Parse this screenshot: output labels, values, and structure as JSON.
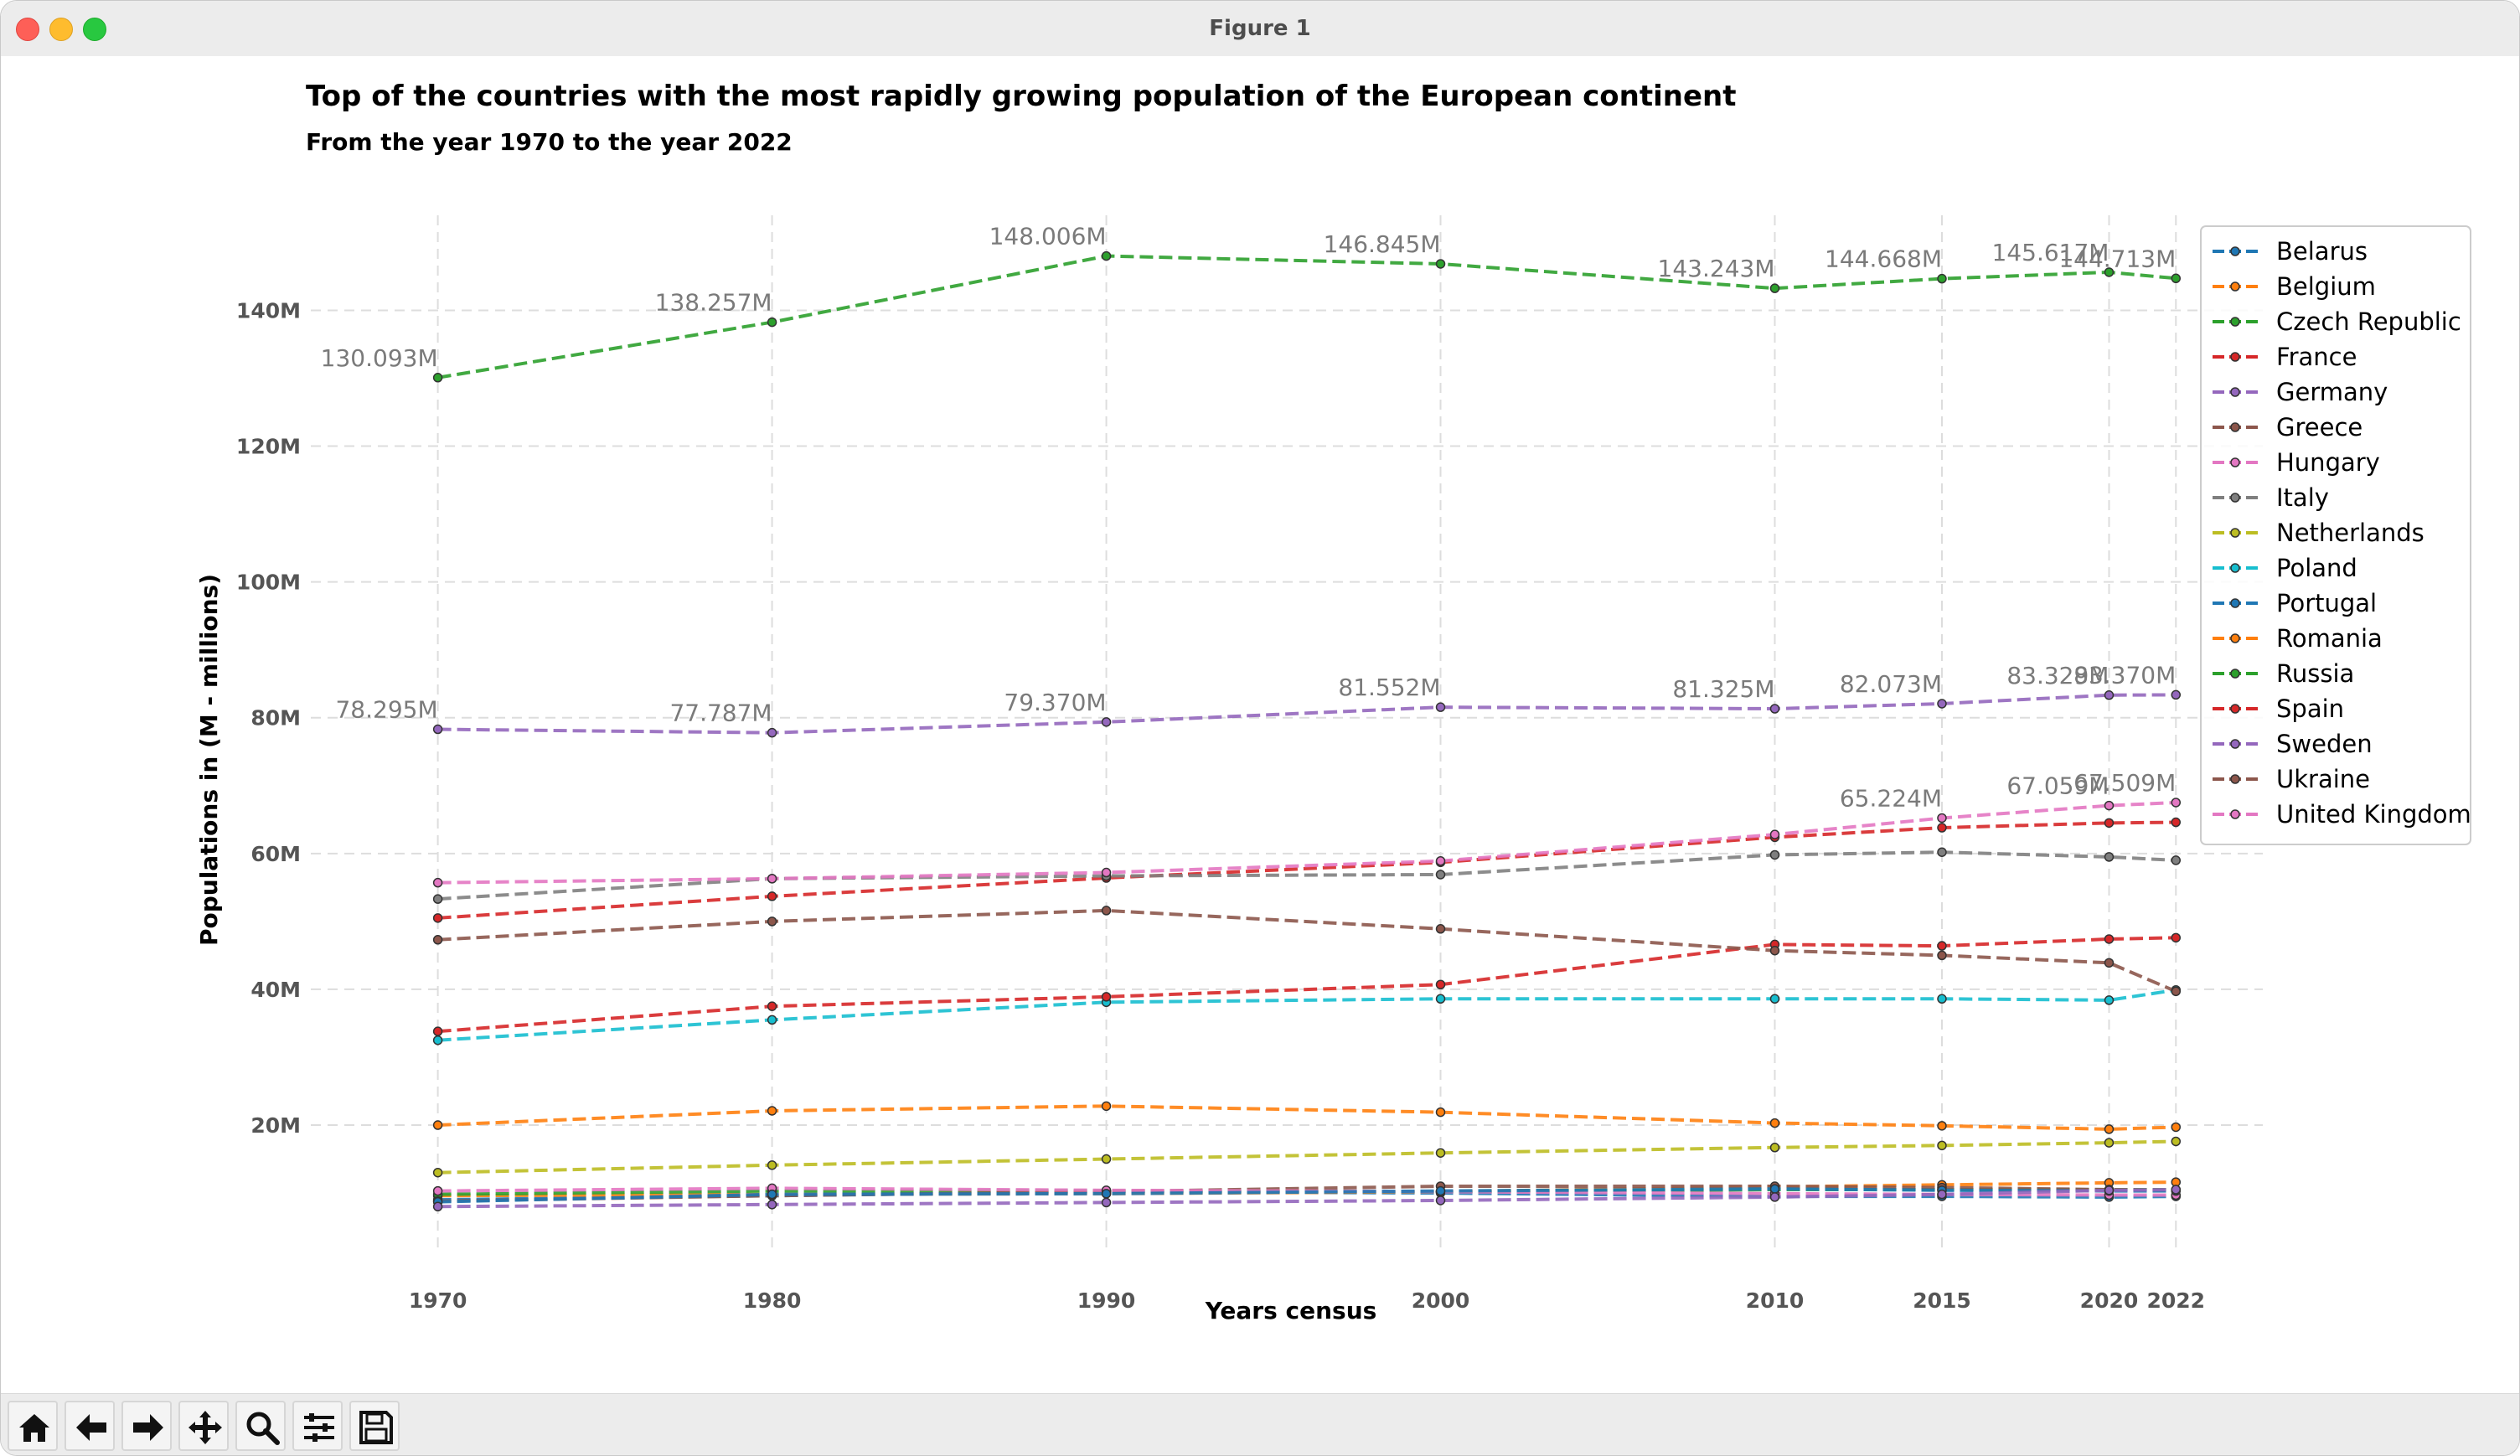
{
  "window": {
    "title": "Figure 1"
  },
  "toolbar": {
    "tools": [
      "home-icon",
      "back-arrow-icon",
      "forward-arrow-icon",
      "pan-icon",
      "zoom-icon",
      "configure-subplots-icon",
      "save-icon"
    ]
  },
  "chart_data": {
    "type": "line",
    "title": "Top of the countries with the most rapidly growing population of the European continent",
    "subtitle": "From the year 1970 to the year 2022",
    "xlabel": "Years census",
    "ylabel": "Populations in (M - millions)",
    "x": [
      "1970",
      "1980",
      "1990",
      "2000",
      "2010",
      "2015",
      "2020",
      "2022"
    ],
    "ytick_labels": [
      "20M",
      "40M",
      "60M",
      "80M",
      "100M",
      "120M",
      "140M"
    ],
    "ylim": [
      1,
      154
    ],
    "grid": true,
    "legend_position": "upper-right",
    "line_style": "dashed",
    "series": [
      {
        "name": "Belarus",
        "color": "#1f77b4",
        "values": [
          9.0,
          9.6,
          10.2,
          10.0,
          9.5,
          9.5,
          9.4,
          9.5
        ]
      },
      {
        "name": "Belgium",
        "color": "#ff7f0e",
        "values": [
          9.6,
          9.8,
          9.9,
          10.2,
          10.9,
          11.2,
          11.5,
          11.6
        ]
      },
      {
        "name": "Czech Republic",
        "color": "#2ca02c",
        "values": [
          9.8,
          10.3,
          10.3,
          10.2,
          10.5,
          10.5,
          10.5,
          10.5
        ]
      },
      {
        "name": "France",
        "color": "#d62728",
        "values": [
          50.5,
          53.7,
          56.4,
          58.7,
          62.4,
          63.8,
          64.5,
          64.6
        ]
      },
      {
        "name": "Germany",
        "color": "#9467bd",
        "values": [
          78.295,
          77.787,
          79.37,
          81.552,
          81.325,
          82.073,
          83.329,
          83.37
        ]
      },
      {
        "name": "Greece",
        "color": "#8c564b",
        "values": [
          8.8,
          9.6,
          10.2,
          11.0,
          11.0,
          10.8,
          10.5,
          10.4
        ]
      },
      {
        "name": "Hungary",
        "color": "#e377c2",
        "values": [
          10.3,
          10.7,
          10.4,
          10.2,
          9.9,
          9.8,
          9.7,
          9.7
        ]
      },
      {
        "name": "Italy",
        "color": "#7f7f7f",
        "values": [
          53.3,
          56.3,
          56.7,
          56.9,
          59.8,
          60.2,
          59.5,
          59.0
        ]
      },
      {
        "name": "Netherlands",
        "color": "#bcbd22",
        "values": [
          13.0,
          14.1,
          15.0,
          15.9,
          16.7,
          17.0,
          17.4,
          17.6
        ]
      },
      {
        "name": "Poland",
        "color": "#17becf",
        "values": [
          32.5,
          35.5,
          38.1,
          38.6,
          38.6,
          38.6,
          38.4,
          39.9
        ]
      },
      {
        "name": "Portugal",
        "color": "#1f77b4",
        "values": [
          8.7,
          9.8,
          9.9,
          10.3,
          10.6,
          10.4,
          10.3,
          10.3
        ]
      },
      {
        "name": "Romania",
        "color": "#ff7f0e",
        "values": [
          20.0,
          22.1,
          22.8,
          21.9,
          20.3,
          19.9,
          19.4,
          19.7
        ]
      },
      {
        "name": "Russia",
        "color": "#2ca02c",
        "values": [
          130.093,
          138.257,
          148.006,
          146.845,
          143.243,
          144.668,
          145.617,
          144.713
        ]
      },
      {
        "name": "Spain",
        "color": "#d62728",
        "values": [
          33.8,
          37.5,
          38.9,
          40.7,
          46.6,
          46.4,
          47.4,
          47.6
        ]
      },
      {
        "name": "Sweden",
        "color": "#9467bd",
        "values": [
          8.0,
          8.3,
          8.6,
          8.9,
          9.4,
          9.8,
          10.4,
          10.5
        ]
      },
      {
        "name": "Ukraine",
        "color": "#8c564b",
        "values": [
          47.3,
          50.0,
          51.6,
          48.9,
          45.7,
          45.0,
          43.9,
          39.7
        ]
      },
      {
        "name": "United Kingdom",
        "color": "#e377c2",
        "values": [
          55.7,
          56.3,
          57.2,
          58.9,
          62.8,
          65.224,
          67.059,
          67.509
        ]
      }
    ],
    "annotations": [
      {
        "series": "Russia",
        "labels": [
          "130.093M",
          "138.257M",
          "148.006M",
          "146.845M",
          "143.243M",
          "144.668M",
          "145.617M",
          "144.713M"
        ]
      },
      {
        "series": "Germany",
        "labels": [
          "78.295M",
          "77.787M",
          "79.370M",
          "81.552M",
          "81.325M",
          "82.073M",
          "83.329M",
          "83.370M"
        ]
      },
      {
        "series": "United Kingdom",
        "points": [
          5,
          6,
          7
        ],
        "labels": [
          "65.224M",
          "67.059M",
          "67.509M"
        ]
      }
    ]
  }
}
